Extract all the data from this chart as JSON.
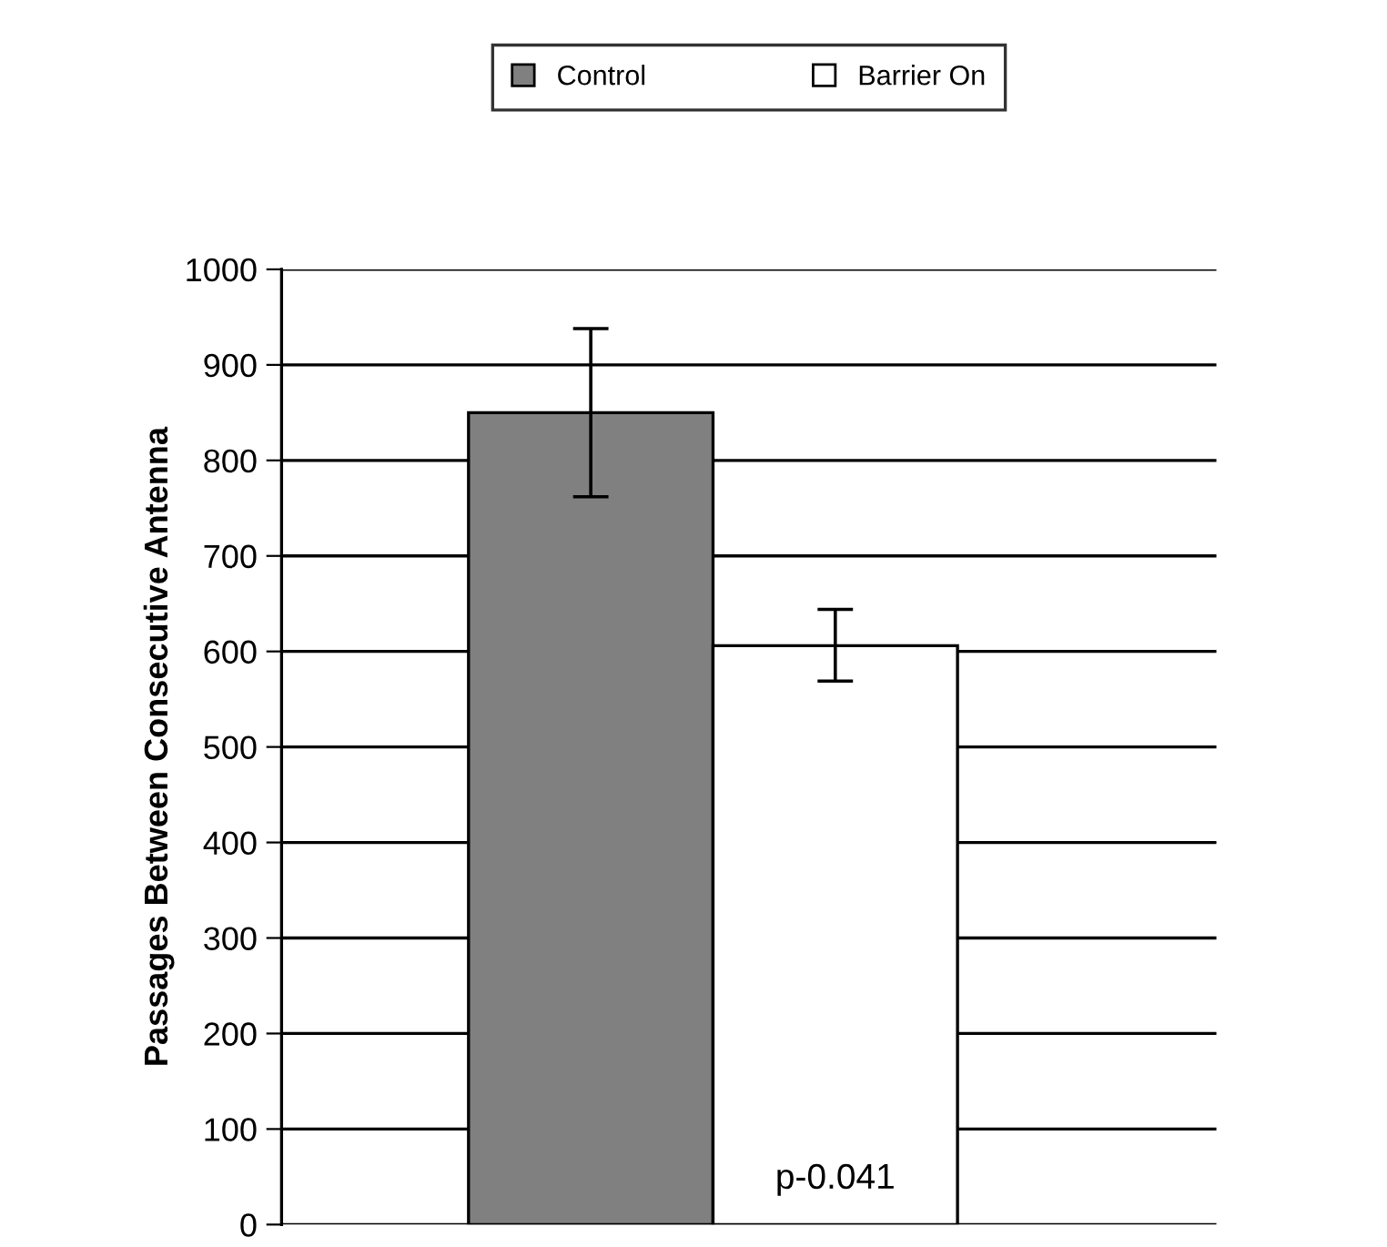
{
  "chart_data": {
    "type": "bar",
    "ylabel": "Passages Between Consecutive Antenna",
    "categories": [
      null
    ],
    "series": [
      {
        "name": "Control",
        "color": "#808080",
        "values": [
          850
        ],
        "errors": [
          [
            762,
            938
          ]
        ]
      },
      {
        "name": "Barrier On",
        "color": "#ffffff",
        "values": [
          606
        ],
        "errors": [
          [
            569,
            644
          ]
        ]
      }
    ],
    "ylim": [
      0,
      1000
    ],
    "yticks": [
      0,
      100,
      200,
      300,
      400,
      500,
      600,
      700,
      800,
      900,
      1000
    ],
    "grid": "y",
    "legend": "top",
    "annotations": [
      "p-0.041"
    ]
  }
}
